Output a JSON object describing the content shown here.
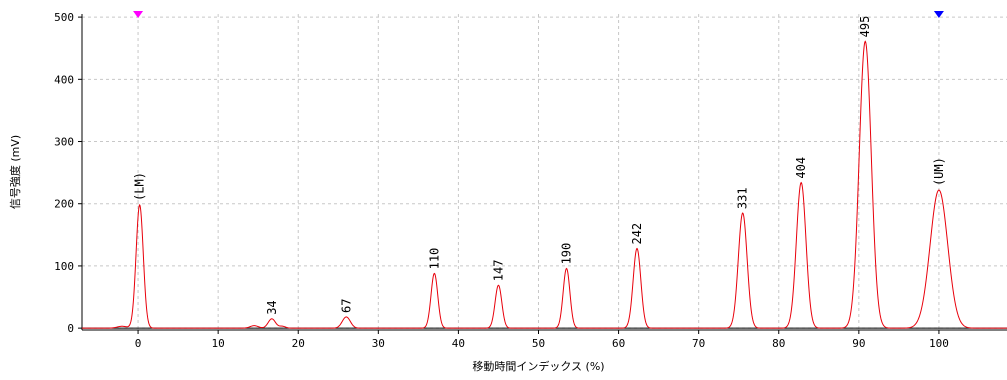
{
  "chart_data": {
    "type": "line",
    "xlabel": "移動時間インデックス (%)",
    "ylabel": "信号強度 (mV)",
    "xlim": [
      -7,
      108.5
    ],
    "ylim": [
      -3,
      505
    ],
    "xticks": [
      0,
      10,
      20,
      30,
      40,
      50,
      60,
      70,
      80,
      90,
      100
    ],
    "yticks": [
      0,
      100,
      200,
      300,
      400,
      500
    ],
    "grid": true,
    "line_color": "#e8000b",
    "baseline_color": "#000000",
    "markers": [
      {
        "x": 0,
        "color": "#ff00ff",
        "shape": "triangle-down"
      },
      {
        "x": 100,
        "color": "#0000ff",
        "shape": "triangle-down"
      }
    ],
    "peaks": [
      {
        "x": -2,
        "height": 3,
        "width": 0.6
      },
      {
        "x": 0.2,
        "height": 198,
        "width": 0.45,
        "label": "(LM)"
      },
      {
        "x": 14.5,
        "height": 4,
        "width": 0.5
      },
      {
        "x": 16.7,
        "height": 15,
        "width": 0.45,
        "label": "34"
      },
      {
        "x": 18.0,
        "height": 3,
        "width": 0.4
      },
      {
        "x": 26.0,
        "height": 18,
        "width": 0.5,
        "label": "67"
      },
      {
        "x": 37.0,
        "height": 88,
        "width": 0.42,
        "label": "110"
      },
      {
        "x": 45.0,
        "height": 69,
        "width": 0.42,
        "label": "147"
      },
      {
        "x": 53.5,
        "height": 96,
        "width": 0.42,
        "label": "190"
      },
      {
        "x": 62.3,
        "height": 128,
        "width": 0.48,
        "label": "242"
      },
      {
        "x": 75.5,
        "height": 185,
        "width": 0.55,
        "label": "331"
      },
      {
        "x": 82.8,
        "height": 234,
        "width": 0.6,
        "label": "404"
      },
      {
        "x": 90.8,
        "height": 461,
        "width": 0.75,
        "label": "495"
      },
      {
        "x": 100.0,
        "height": 222,
        "width": 1.1,
        "label": "(UM)"
      }
    ]
  }
}
